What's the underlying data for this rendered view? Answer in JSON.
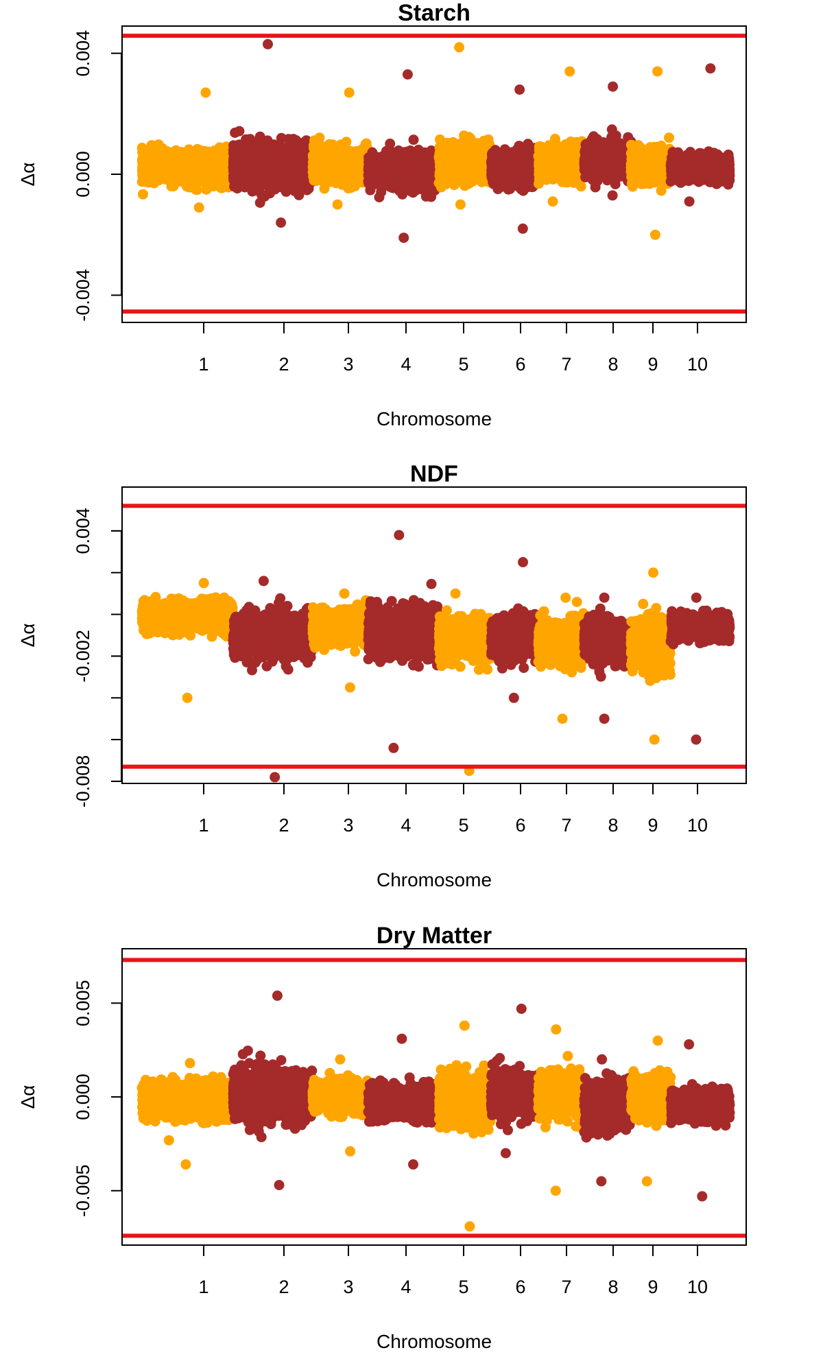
{
  "colors": {
    "odd_chromosome": "#FFA500",
    "even_chromosome": "#A52A2A",
    "threshold": "#E8141A",
    "axis": "#000000"
  },
  "chart_data": [
    {
      "type": "scatter",
      "title": "Starch",
      "xlabel": "Chromosome",
      "ylabel": "Δα",
      "x_ticks": [
        "1",
        "2",
        "3",
        "4",
        "5",
        "6",
        "7",
        "8",
        "9",
        "10"
      ],
      "y_ticks": [
        "-0.004",
        "0.000",
        "0.004"
      ],
      "y_tick_values": [
        -0.004,
        0.0,
        0.004
      ],
      "ylim": [
        -0.0049,
        0.0049
      ],
      "thresholds": [
        0.00458,
        -0.00454
      ],
      "chromosomes": [
        {
          "chr": 1,
          "pos": [
            0,
            1
          ],
          "center": 0.0002,
          "spread": 0.00045,
          "low": -0.0011,
          "high": 0.0027
        },
        {
          "chr": 2,
          "pos": [
            1,
            2.6
          ],
          "center": 0.0003,
          "spread": 0.0006,
          "low": -0.0016,
          "high": 0.0043
        },
        {
          "chr": 3,
          "pos": [
            2.6,
            3.6
          ],
          "center": 0.0003,
          "spread": 0.0005,
          "low": -0.001,
          "high": 0.0027
        },
        {
          "chr": 4,
          "pos": [
            3.6,
            4.6
          ],
          "center": 0.0001,
          "spread": 0.0005,
          "low": -0.0021,
          "high": 0.0033
        },
        {
          "chr": 5,
          "pos": [
            4.6,
            5.6
          ],
          "center": 0.0004,
          "spread": 0.0005,
          "low": -0.001,
          "high": 0.0042
        },
        {
          "chr": 6,
          "pos": [
            5.6,
            6.4
          ],
          "center": 0.0002,
          "spread": 0.0005,
          "low": -0.0018,
          "high": 0.0028
        },
        {
          "chr": 7,
          "pos": [
            6.4,
            7.2
          ],
          "center": 0.0004,
          "spread": 0.0005,
          "low": -0.0009,
          "high": 0.0034
        },
        {
          "chr": 8,
          "pos": [
            7.2,
            8.0
          ],
          "center": 0.0005,
          "spread": 0.0005,
          "low": -0.0007,
          "high": 0.0029
        },
        {
          "chr": 9,
          "pos": [
            8.0,
            8.7
          ],
          "center": 0.0003,
          "spread": 0.0005,
          "low": -0.002,
          "high": 0.0034
        },
        {
          "chr": 10,
          "pos": [
            8.7,
            9.6
          ],
          "center": 0.0002,
          "spread": 0.00035,
          "low": -0.0009,
          "high": 0.0035
        }
      ]
    },
    {
      "type": "scatter",
      "title": "NDF",
      "xlabel": "Chromosome",
      "ylabel": "Δα",
      "x_ticks": [
        "1",
        "2",
        "3",
        "4",
        "5",
        "6",
        "7",
        "8",
        "9",
        "10"
      ],
      "y_ticks": [
        "-0.008",
        "-0.002",
        "0.004"
      ],
      "y_tick_values": [
        -0.008,
        -0.002,
        0.004
      ],
      "minor_y_tick_values": [
        -0.008,
        -0.006,
        -0.004,
        -0.002,
        0.0,
        0.002,
        0.004
      ],
      "ylim": [
        -0.0081,
        0.0061
      ],
      "thresholds": [
        0.0052,
        -0.0073
      ],
      "chromosomes": [
        {
          "chr": 1,
          "pos": [
            0,
            1
          ],
          "center": -0.0001,
          "spread": 0.0006,
          "low": -0.004,
          "high": 0.0015
        },
        {
          "chr": 2,
          "pos": [
            1,
            2.6
          ],
          "center": -0.001,
          "spread": 0.0009,
          "low": -0.0078,
          "high": 0.0016
        },
        {
          "chr": 3,
          "pos": [
            2.6,
            3.6
          ],
          "center": -0.0006,
          "spread": 0.0007,
          "low": -0.0035,
          "high": 0.001
        },
        {
          "chr": 4,
          "pos": [
            3.6,
            4.6
          ],
          "center": -0.0009,
          "spread": 0.001,
          "low": -0.0064,
          "high": 0.0038
        },
        {
          "chr": 5,
          "pos": [
            4.6,
            5.6
          ],
          "center": -0.0012,
          "spread": 0.0009,
          "low": -0.0075,
          "high": 0.001
        },
        {
          "chr": 6,
          "pos": [
            5.6,
            6.4
          ],
          "center": -0.0011,
          "spread": 0.0008,
          "low": -0.004,
          "high": 0.0025
        },
        {
          "chr": 7,
          "pos": [
            6.4,
            7.2
          ],
          "center": -0.0013,
          "spread": 0.0009,
          "low": -0.005,
          "high": 0.0008
        },
        {
          "chr": 8,
          "pos": [
            7.2,
            8.0
          ],
          "center": -0.0013,
          "spread": 0.0009,
          "low": -0.005,
          "high": 0.0008
        },
        {
          "chr": 9,
          "pos": [
            8.0,
            8.7
          ],
          "center": -0.0015,
          "spread": 0.0011,
          "low": -0.006,
          "high": 0.002
        },
        {
          "chr": 10,
          "pos": [
            8.7,
            9.6
          ],
          "center": -0.0006,
          "spread": 0.0005,
          "low": -0.006,
          "high": 0.0008
        }
      ]
    },
    {
      "type": "scatter",
      "title": "Dry Matter",
      "xlabel": "Chromosome",
      "ylabel": "Δα",
      "x_ticks": [
        "1",
        "2",
        "3",
        "4",
        "5",
        "6",
        "7",
        "8",
        "9",
        "10"
      ],
      "y_ticks": [
        "-0.005",
        "0.000",
        "0.005"
      ],
      "y_tick_values": [
        -0.005,
        0.0,
        0.005
      ],
      "ylim": [
        -0.0079,
        0.0079
      ],
      "thresholds": [
        0.0073,
        -0.0074
      ],
      "chromosomes": [
        {
          "chr": 1,
          "pos": [
            0,
            1
          ],
          "center": -0.0002,
          "spread": 0.0008,
          "low": -0.0036,
          "high": 0.0018
        },
        {
          "chr": 2,
          "pos": [
            1,
            2.6
          ],
          "center": 0.0001,
          "spread": 0.0012,
          "low": -0.0047,
          "high": 0.0054
        },
        {
          "chr": 3,
          "pos": [
            2.6,
            3.6
          ],
          "center": 0.0,
          "spread": 0.0007,
          "low": -0.0029,
          "high": 0.002
        },
        {
          "chr": 4,
          "pos": [
            3.6,
            4.6
          ],
          "center": -0.0003,
          "spread": 0.0008,
          "low": -0.0036,
          "high": 0.0031
        },
        {
          "chr": 5,
          "pos": [
            4.6,
            5.6
          ],
          "center": -0.0002,
          "spread": 0.0012,
          "low": -0.0069,
          "high": 0.0038
        },
        {
          "chr": 6,
          "pos": [
            5.6,
            6.4
          ],
          "center": 0.0001,
          "spread": 0.001,
          "low": -0.003,
          "high": 0.0047
        },
        {
          "chr": 7,
          "pos": [
            6.4,
            7.2
          ],
          "center": 0.0001,
          "spread": 0.001,
          "low": -0.005,
          "high": 0.0036
        },
        {
          "chr": 8,
          "pos": [
            7.2,
            8.0
          ],
          "center": -0.0005,
          "spread": 0.001,
          "low": -0.0045,
          "high": 0.002
        },
        {
          "chr": 9,
          "pos": [
            8.0,
            8.7
          ],
          "center": 0.0,
          "spread": 0.001,
          "low": -0.0045,
          "high": 0.003
        },
        {
          "chr": 10,
          "pos": [
            8.7,
            9.6
          ],
          "center": -0.0004,
          "spread": 0.0007,
          "low": -0.0053,
          "high": 0.0028
        }
      ]
    }
  ]
}
